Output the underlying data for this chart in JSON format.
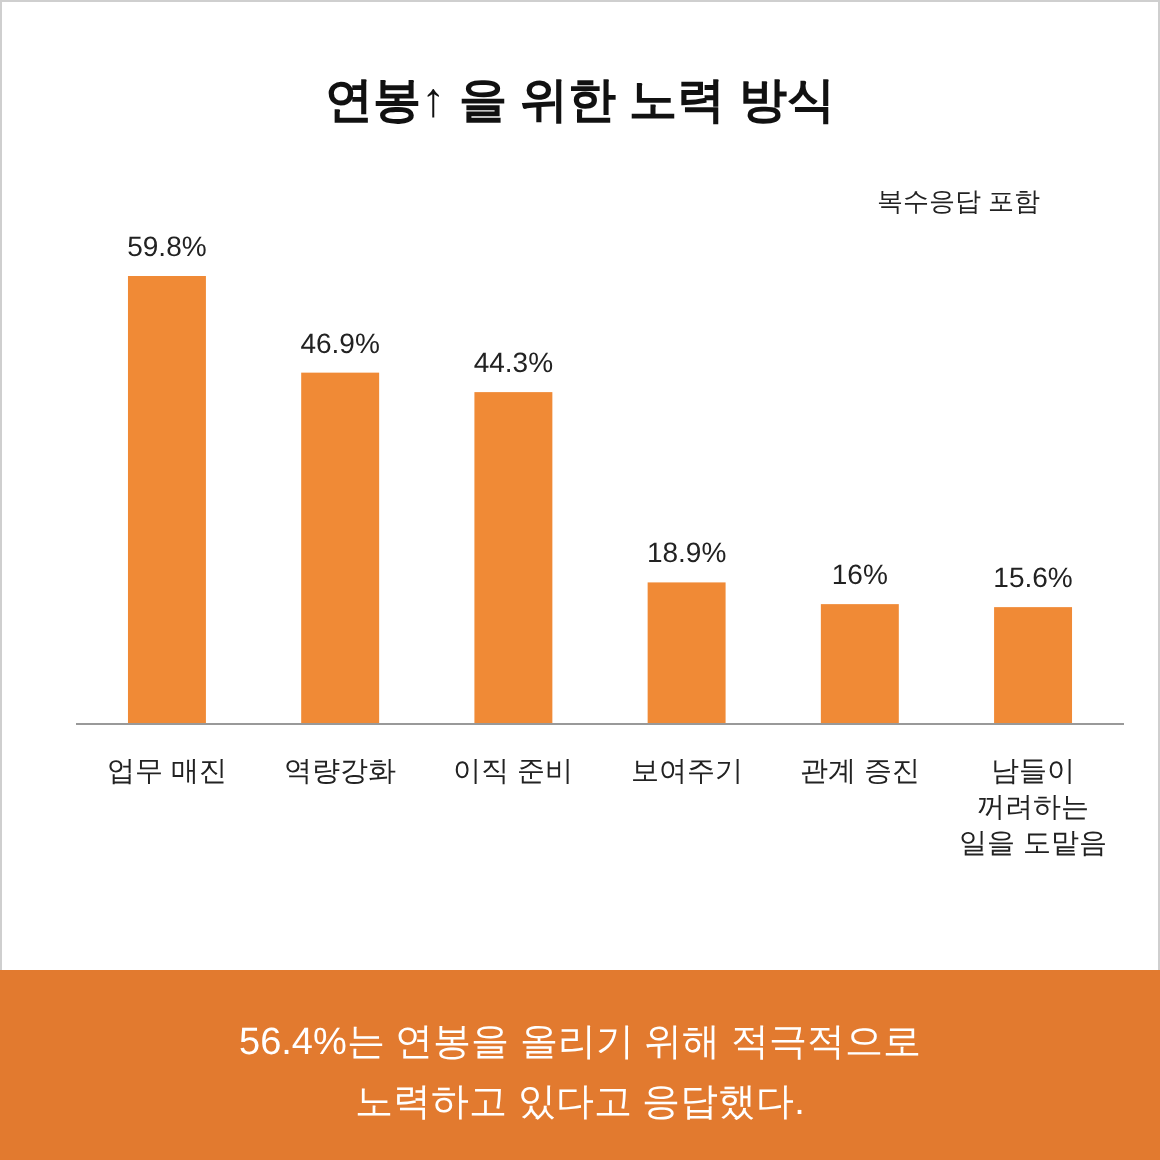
{
  "chart_data": {
    "type": "bar",
    "title": "연봉↑ 을 위한 노력 방식",
    "subtitle": "복수응답 포함",
    "categories": [
      "업무 매진",
      "역량강화",
      "이직 준비",
      "보여주기",
      "관계 증진",
      "남들이 꺼려하는 일을 도맡음"
    ],
    "values": [
      59.8,
      46.9,
      44.3,
      18.9,
      16,
      15.6
    ],
    "value_labels": [
      "59.8%",
      "46.9%",
      "44.3%",
      "18.9%",
      "16%",
      "15.6%"
    ],
    "color": "#f08a36",
    "annotations": [
      "56.4%는 연봉을 올리기 위해 적극적으로 노력하고 있다고 응답했다."
    ]
  }
}
